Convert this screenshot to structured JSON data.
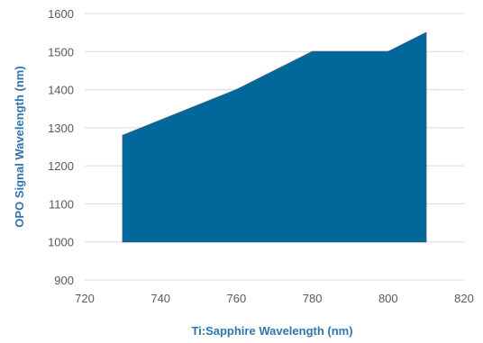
{
  "chart_data": {
    "type": "area",
    "title": "",
    "xlabel": "Ti:Sapphire Wavelength (nm)",
    "ylabel": "OPO Signal Wavelength (nm)",
    "xlim": [
      720,
      820
    ],
    "ylim": [
      900,
      1600
    ],
    "baseline": 1000,
    "xticks": [
      720,
      740,
      760,
      780,
      800,
      820
    ],
    "yticks": [
      900,
      1000,
      1100,
      1200,
      1300,
      1400,
      1500,
      1600
    ],
    "grid": true,
    "legend": "none",
    "series": [
      {
        "x": [
          730,
          760,
          780,
          800,
          810
        ],
        "values": [
          1280,
          1400,
          1500,
          1500,
          1550
        ]
      }
    ],
    "colors": {
      "fill": "#00689b",
      "axis_label": "#2e75b6",
      "tick_label": "#595959",
      "grid": "#d9d9d9"
    }
  }
}
